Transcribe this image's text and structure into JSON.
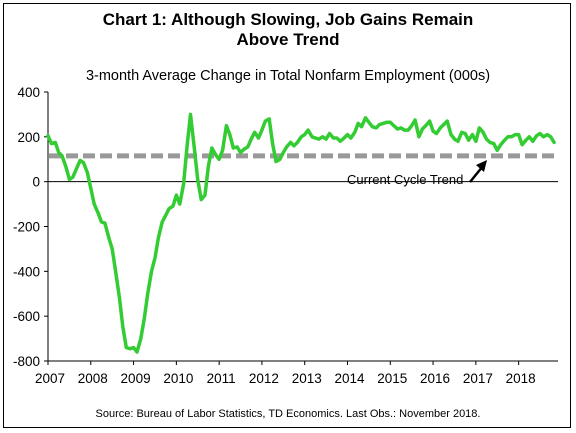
{
  "chart_data": {
    "type": "line",
    "title": [
      "Chart 1: Although Slowing, Job Gains Remain",
      "Above Trend"
    ],
    "subtitle": "3-month Average Change in Total Nonfarm Employment (000s)",
    "source": "Source: Bureau of Labor Statistics, TD Economics. Last Obs.: November 2018.",
    "xlabel": "",
    "ylabel": "",
    "ylim": [
      -800,
      400
    ],
    "yticks": [
      -800,
      -600,
      -400,
      -200,
      0,
      200,
      400
    ],
    "xlim": [
      2007,
      2018.92
    ],
    "xticks": [
      "2007",
      "2008",
      "2009",
      "2010",
      "2011",
      "2012",
      "2013",
      "2014",
      "2015",
      "2016",
      "2017",
      "2018"
    ],
    "grid": false,
    "colors": {
      "series": "#33cc33",
      "trend": "#999999",
      "arrow": "#000000"
    },
    "trend": {
      "label": "Current Cycle Trend",
      "value": 115
    },
    "series": [
      {
        "x": [
          2007.0,
          2007.08,
          2007.17,
          2007.25,
          2007.33,
          2007.42,
          2007.5,
          2007.58,
          2007.67,
          2007.75,
          2007.83,
          2007.92,
          2008.0,
          2008.08,
          2008.17,
          2008.25,
          2008.33,
          2008.42,
          2008.5,
          2008.58,
          2008.67,
          2008.75,
          2008.83,
          2008.92,
          2009.0,
          2009.08,
          2009.17,
          2009.25,
          2009.33,
          2009.42,
          2009.5,
          2009.58,
          2009.67,
          2009.75,
          2009.83,
          2009.92,
          2010.0,
          2010.08,
          2010.17,
          2010.25,
          2010.33,
          2010.42,
          2010.5,
          2010.58,
          2010.67,
          2010.75,
          2010.83,
          2010.92,
          2011.0,
          2011.08,
          2011.17,
          2011.25,
          2011.33,
          2011.42,
          2011.5,
          2011.58,
          2011.67,
          2011.75,
          2011.83,
          2011.92,
          2012.0,
          2012.08,
          2012.17,
          2012.25,
          2012.33,
          2012.42,
          2012.5,
          2012.58,
          2012.67,
          2012.75,
          2012.83,
          2012.92,
          2013.0,
          2013.08,
          2013.17,
          2013.25,
          2013.33,
          2013.42,
          2013.5,
          2013.58,
          2013.67,
          2013.75,
          2013.83,
          2013.92,
          2014.0,
          2014.08,
          2014.17,
          2014.25,
          2014.33,
          2014.42,
          2014.5,
          2014.58,
          2014.67,
          2014.75,
          2014.83,
          2014.92,
          2015.0,
          2015.08,
          2015.17,
          2015.25,
          2015.33,
          2015.42,
          2015.5,
          2015.58,
          2015.67,
          2015.75,
          2015.83,
          2015.92,
          2016.0,
          2016.08,
          2016.17,
          2016.25,
          2016.33,
          2016.42,
          2016.5,
          2016.58,
          2016.67,
          2016.75,
          2016.83,
          2016.92,
          2017.0,
          2017.08,
          2017.17,
          2017.25,
          2017.33,
          2017.42,
          2017.5,
          2017.58,
          2017.67,
          2017.75,
          2017.83,
          2017.92,
          2018.0,
          2018.08,
          2018.17,
          2018.25,
          2018.33,
          2018.42,
          2018.5,
          2018.58,
          2018.67,
          2018.75,
          2018.83
        ],
        "values": [
          205,
          170,
          175,
          130,
          115,
          65,
          10,
          20,
          60,
          95,
          85,
          40,
          -30,
          -100,
          -140,
          -180,
          -185,
          -250,
          -300,
          -400,
          -520,
          -650,
          -740,
          -745,
          -740,
          -760,
          -700,
          -610,
          -500,
          -400,
          -340,
          -250,
          -180,
          -150,
          -120,
          -110,
          -60,
          -100,
          -10,
          160,
          300,
          150,
          10,
          -80,
          -60,
          70,
          150,
          120,
          100,
          140,
          250,
          210,
          150,
          155,
          130,
          145,
          155,
          190,
          220,
          195,
          230,
          270,
          280,
          170,
          90,
          100,
          130,
          155,
          175,
          160,
          175,
          200,
          210,
          230,
          200,
          195,
          190,
          200,
          190,
          215,
          195,
          195,
          180,
          195,
          210,
          195,
          220,
          260,
          245,
          285,
          265,
          245,
          240,
          255,
          260,
          265,
          265,
          250,
          235,
          240,
          230,
          230,
          250,
          275,
          200,
          235,
          250,
          270,
          225,
          215,
          240,
          255,
          270,
          210,
          190,
          180,
          220,
          215,
          185,
          210,
          180,
          240,
          220,
          190,
          175,
          170,
          140,
          165,
          185,
          200,
          200,
          210,
          210,
          165,
          185,
          200,
          180,
          205,
          215,
          200,
          210,
          200,
          175
        ]
      }
    ]
  }
}
